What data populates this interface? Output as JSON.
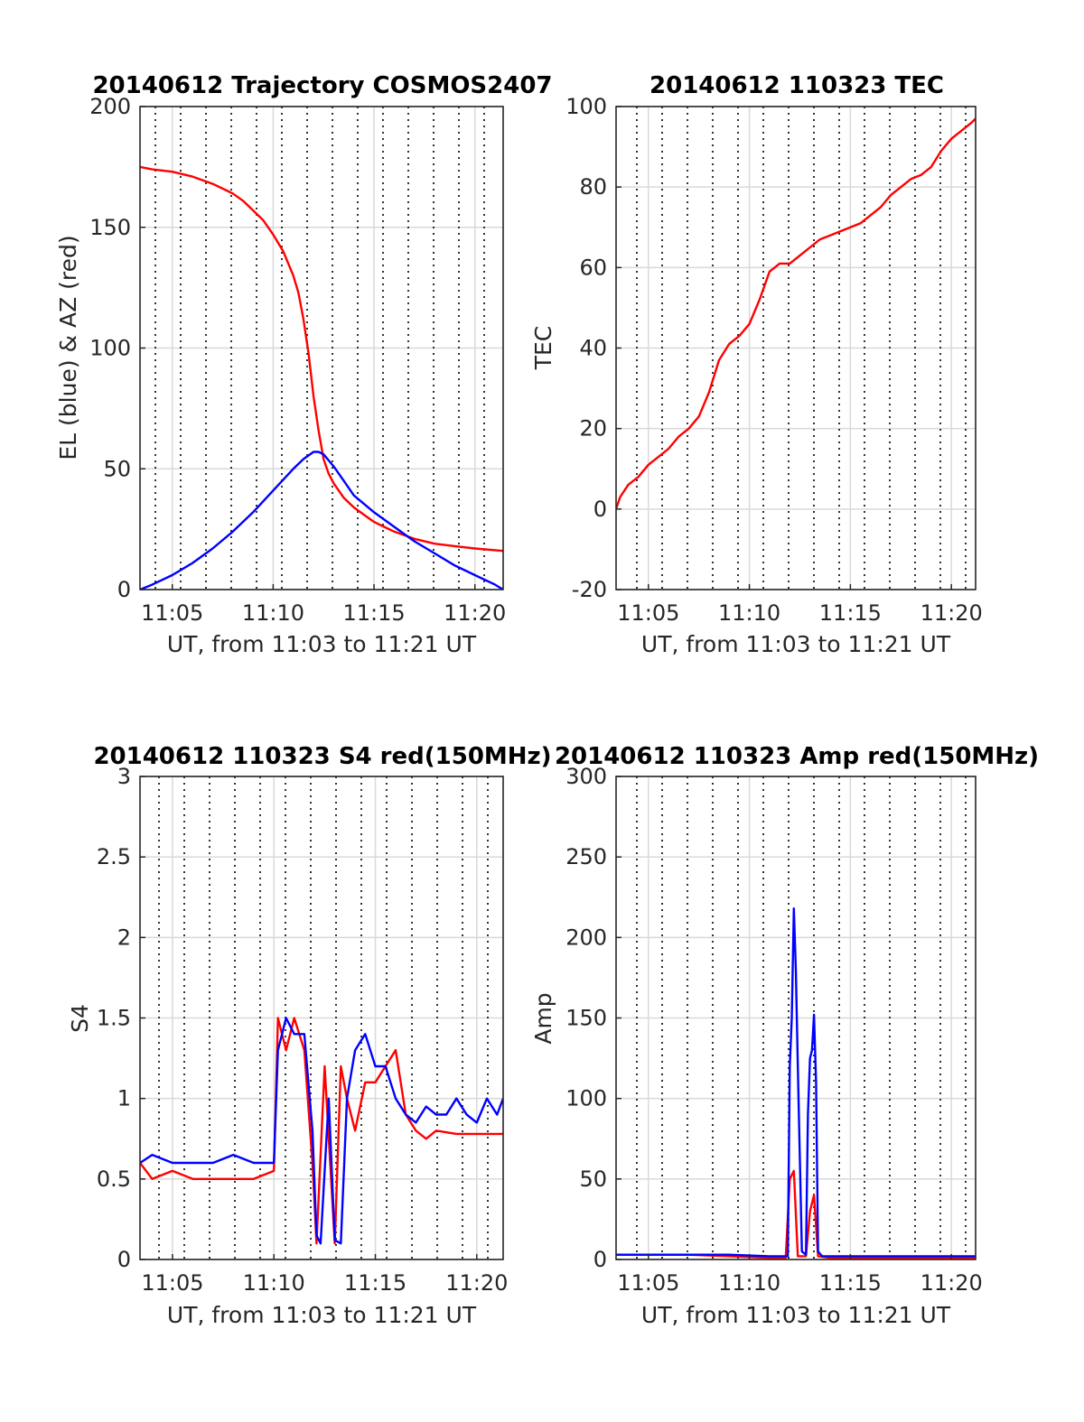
{
  "colors": {
    "red": "#ff0000",
    "blue": "#0000ff",
    "grid": "#d9d9d9",
    "axis": "#262626",
    "vline": "#000000"
  },
  "x_tick_labels": [
    "11:05",
    "11:10",
    "11:15",
    "11:20"
  ],
  "chart_data": [
    {
      "type": "line",
      "title": "20140612 Trajectory COSMOS2407",
      "xlabel": "UT, from 11:03 to 11:21 UT",
      "ylabel": "EL (blue) & AZ (red)",
      "xlim": [
        3.4,
        21.4
      ],
      "ylim": [
        0,
        200
      ],
      "yticks": [
        "0",
        "50",
        "100",
        "150",
        "200"
      ],
      "series": [
        {
          "color": "red",
          "x": [
            3.4,
            4,
            5,
            6,
            7,
            8,
            8.5,
            9,
            9.5,
            10,
            10.5,
            11,
            11.25,
            11.5,
            11.75,
            12,
            12.25,
            12.5,
            12.75,
            13,
            13.5,
            14,
            14.5,
            15,
            15.5,
            16,
            17,
            18,
            19,
            20,
            21.4
          ],
          "y": [
            175,
            174,
            173,
            171,
            168,
            164,
            161,
            157,
            153,
            147,
            140,
            130,
            123,
            112,
            98,
            80,
            66,
            54,
            48,
            44,
            38,
            34,
            31,
            28,
            26,
            24,
            21,
            19,
            18,
            17,
            16
          ]
        },
        {
          "color": "blue",
          "x": [
            3.4,
            4,
            5,
            6,
            7,
            8,
            9,
            10,
            11,
            11.5,
            12,
            12.25,
            12.5,
            13,
            13.5,
            14,
            15,
            16,
            17,
            18,
            19,
            20,
            21,
            21.4
          ],
          "y": [
            0,
            2,
            6,
            11,
            17,
            24,
            32,
            41,
            50,
            54,
            57,
            57,
            56,
            51,
            45,
            39,
            32,
            26,
            20,
            15,
            10,
            6,
            2,
            0
          ]
        }
      ]
    },
    {
      "type": "line",
      "title": "20140612 110323 TEC",
      "xlabel": "UT, from 11:03 to 11:21 UT",
      "ylabel": "TEC",
      "xlim": [
        3.4,
        21.2
      ],
      "ylim": [
        -20,
        100
      ],
      "yticks": [
        "-20",
        "0",
        "20",
        "40",
        "60",
        "80",
        "100"
      ],
      "series": [
        {
          "color": "red",
          "x": [
            3.4,
            3.6,
            4,
            4.5,
            5,
            5.5,
            6,
            6.5,
            7,
            7.5,
            8,
            8.5,
            9,
            9.5,
            10,
            10.5,
            11,
            11.5,
            12,
            12.5,
            13,
            13.5,
            14,
            14.5,
            15,
            15.5,
            16,
            16.5,
            17,
            17.5,
            18,
            18.5,
            19,
            19.5,
            20,
            20.5,
            21,
            21.2
          ],
          "y": [
            0,
            3,
            6,
            8,
            11,
            13,
            15,
            18,
            20,
            23,
            29,
            37,
            41,
            43,
            46,
            52,
            59,
            61,
            61,
            63,
            65,
            67,
            68,
            69,
            70,
            71,
            73,
            75,
            78,
            80,
            82,
            83,
            85,
            89,
            92,
            94,
            96,
            97
          ]
        }
      ]
    },
    {
      "type": "line",
      "title": "20140612 110323 S4 red(150MHz)",
      "xlabel": "UT, from 11:03 to 11:21 UT",
      "ylabel": "S4",
      "xlim": [
        3.4,
        21.3
      ],
      "ylim": [
        0,
        3
      ],
      "yticks": [
        "0",
        "0.5",
        "1",
        "1.5",
        "2",
        "2.5",
        "3"
      ],
      "series": [
        {
          "color": "red",
          "x": [
            3.4,
            4,
            5,
            6,
            7,
            8,
            9,
            10,
            10.2,
            10.6,
            11,
            11.5,
            11.9,
            12.1,
            12.5,
            13,
            13.3,
            13.6,
            14,
            14.5,
            15,
            15.5,
            16,
            16.5,
            17,
            17.5,
            18,
            19,
            20,
            21,
            21.3
          ],
          "y": [
            0.6,
            0.5,
            0.55,
            0.5,
            0.5,
            0.5,
            0.5,
            0.55,
            1.5,
            1.3,
            1.5,
            1.3,
            0.6,
            0.1,
            1.2,
            0.1,
            1.2,
            1.0,
            0.8,
            1.1,
            1.1,
            1.2,
            1.3,
            0.9,
            0.8,
            0.75,
            0.8,
            0.78,
            0.78,
            0.78,
            0.78
          ]
        },
        {
          "color": "blue",
          "x": [
            3.4,
            4,
            5,
            6,
            7,
            8,
            9,
            10,
            10.2,
            10.6,
            11,
            11.5,
            11.9,
            12.1,
            12.3,
            12.7,
            13,
            13.3,
            13.6,
            14,
            14.5,
            15,
            15.5,
            16,
            16.5,
            17,
            17.5,
            18,
            18.5,
            19,
            19.5,
            20,
            20.5,
            21,
            21.3
          ],
          "y": [
            0.6,
            0.65,
            0.6,
            0.6,
            0.6,
            0.65,
            0.6,
            0.6,
            1.3,
            1.5,
            1.4,
            1.4,
            0.8,
            0.15,
            0.1,
            1.0,
            0.12,
            0.1,
            1.0,
            1.3,
            1.4,
            1.2,
            1.2,
            1.0,
            0.9,
            0.85,
            0.95,
            0.9,
            0.9,
            1.0,
            0.9,
            0.85,
            1.0,
            0.9,
            1.0
          ]
        }
      ]
    },
    {
      "type": "line",
      "title": "20140612 110323 Amp red(150MHz)",
      "xlabel": "UT, from 11:03 to 11:21 UT",
      "ylabel": "Amp",
      "xlim": [
        3.4,
        21.2
      ],
      "ylim": [
        0,
        300
      ],
      "yticks": [
        "0",
        "50",
        "100",
        "150",
        "200",
        "250",
        "300"
      ],
      "series": [
        {
          "color": "red",
          "x": [
            3.4,
            5,
            7,
            9,
            11,
            11.8,
            12,
            12.2,
            12.4,
            12.8,
            13,
            13.2,
            13.4,
            14,
            16,
            18,
            20,
            21.2
          ],
          "y": [
            3,
            3,
            3,
            2,
            1,
            1,
            50,
            55,
            2,
            2,
            30,
            40,
            2,
            1,
            1,
            1,
            1,
            1
          ]
        },
        {
          "color": "blue",
          "x": [
            3.4,
            5,
            7,
            9,
            11,
            11.9,
            12,
            12.1,
            12.2,
            12.3,
            12.4,
            12.6,
            12.8,
            12.9,
            13.0,
            13.1,
            13.2,
            13.3,
            13.4,
            13.6,
            14,
            16,
            18,
            20,
            21.2
          ],
          "y": [
            3,
            3,
            3,
            3,
            2,
            2,
            120,
            150,
            218,
            180,
            120,
            5,
            3,
            90,
            125,
            130,
            152,
            110,
            5,
            2,
            2,
            2,
            2,
            2,
            2
          ]
        }
      ]
    }
  ]
}
